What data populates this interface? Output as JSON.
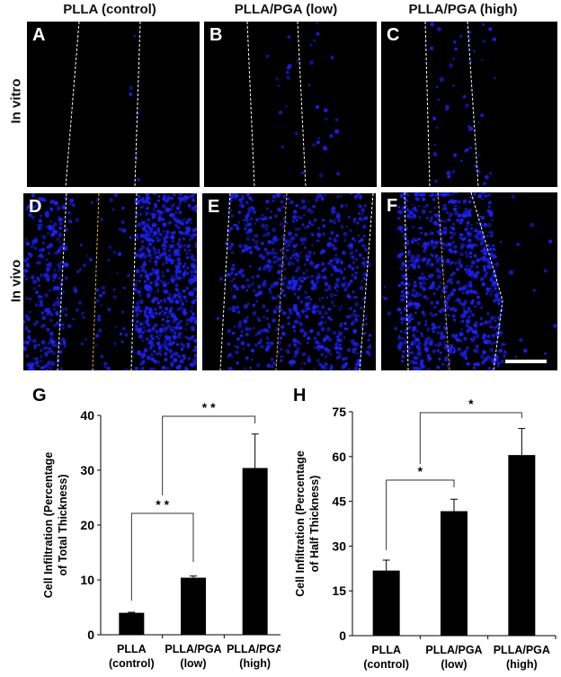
{
  "figure": {
    "column_titles": [
      "PLLA (control)",
      "PLLA/PGA (low)",
      "PLLA/PGA (high)"
    ],
    "row_labels": [
      "In vitro",
      "In vivo"
    ],
    "panels": [
      {
        "letter": "A",
        "row": "In vitro",
        "column": "PLLA (control)"
      },
      {
        "letter": "B",
        "row": "In vitro",
        "column": "PLLA/PGA (low)"
      },
      {
        "letter": "C",
        "row": "In vitro",
        "column": "PLLA/PGA (high)"
      },
      {
        "letter": "D",
        "row": "In vivo",
        "column": "PLLA (control)"
      },
      {
        "letter": "E",
        "row": "In vivo",
        "column": "PLLA/PGA (low)"
      },
      {
        "letter": "F",
        "row": "In vivo",
        "column": "PLLA/PGA (high)"
      }
    ],
    "colors": {
      "nuclei": "#1a22ff",
      "boundary_line": "#ffffff",
      "midline": "#e8b020",
      "background": "#000000",
      "bar": "#000000"
    }
  },
  "chart_data": [
    {
      "panel": "G",
      "type": "bar",
      "title": "",
      "ylabel": "Cell Infiltration (Percentage of Total Thickness)",
      "ylabel_lines": [
        "Cell Infiltration (Percentage",
        "of Total Thickness)"
      ],
      "xlabel": "",
      "categories": [
        "PLLA (control)",
        "PLLA/PGA (low)",
        "PLLA/PGA (high)"
      ],
      "category_lines": [
        [
          "PLLA",
          "(control)"
        ],
        [
          "PLLA/PGA",
          "(low)"
        ],
        [
          "PLLA/PGA",
          "(high)"
        ]
      ],
      "values": [
        4.0,
        10.4,
        30.4
      ],
      "errors": [
        0.1,
        0.3,
        6.2
      ],
      "ylim": [
        0,
        40
      ],
      "yticks": [
        0,
        10,
        20,
        30,
        40
      ],
      "grid": false,
      "significance": [
        {
          "from": 0,
          "to": 1,
          "label": "* *"
        },
        {
          "from": 0.5,
          "to": 2,
          "label": "* *"
        }
      ]
    },
    {
      "panel": "H",
      "type": "bar",
      "title": "",
      "ylabel": "Cell Infiltration (Percentage of Half Thickness)",
      "ylabel_lines": [
        "Cell Infiltration (Percentage",
        "of Half Thickness)"
      ],
      "xlabel": "",
      "categories": [
        "PLLA (control)",
        "PLLA/PGA (low)",
        "PLLA/PGA (high)"
      ],
      "category_lines": [
        [
          "PLLA",
          "(control)"
        ],
        [
          "PLLA/PGA",
          "(low)"
        ],
        [
          "PLLA/PGA",
          "(high)"
        ]
      ],
      "values": [
        21.8,
        41.7,
        60.5
      ],
      "errors": [
        3.5,
        4.0,
        8.9
      ],
      "ylim": [
        0,
        75
      ],
      "yticks": [
        0,
        15,
        30,
        45,
        60,
        75
      ],
      "grid": false,
      "significance": [
        {
          "from": 0,
          "to": 1,
          "label": "*"
        },
        {
          "from": 0.5,
          "to": 2,
          "label": "*"
        }
      ]
    }
  ]
}
